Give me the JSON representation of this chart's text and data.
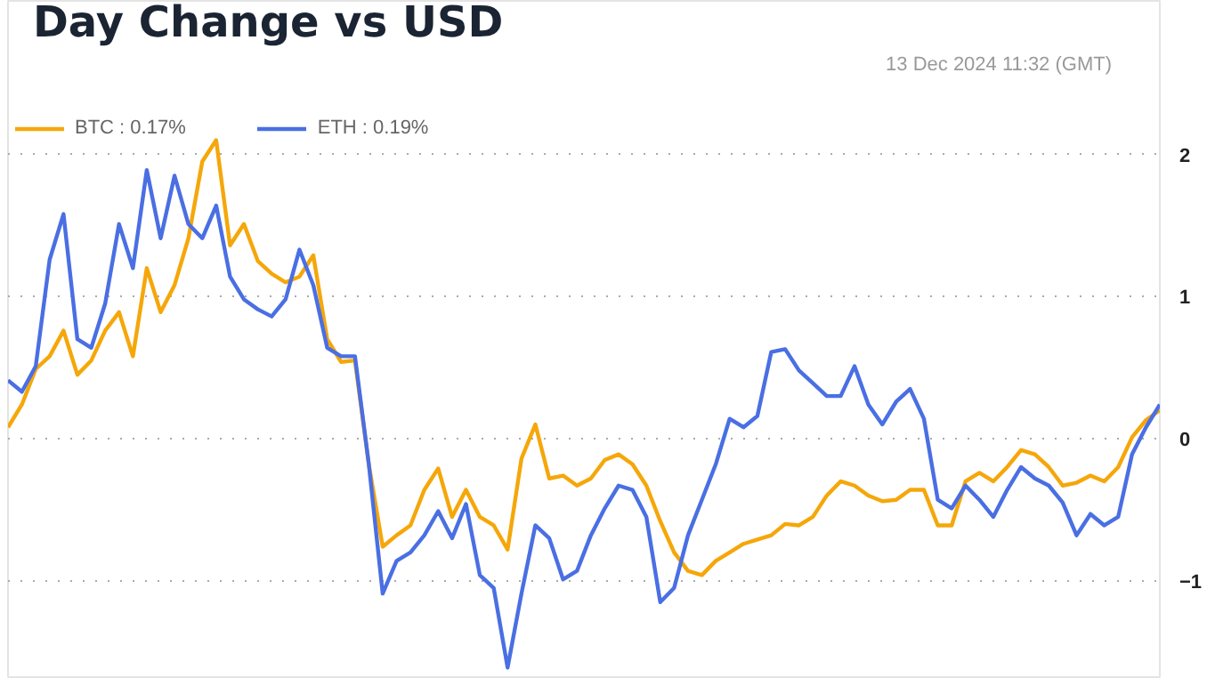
{
  "chart_data": {
    "type": "line",
    "title": "Day Change vs USD",
    "annotations": [
      "13 Dec 2024 11:32 (GMT)"
    ],
    "categories": [
      null,
      null,
      null,
      null,
      null,
      null,
      null,
      null,
      null,
      null,
      null,
      null,
      null,
      null,
      null,
      null,
      null,
      null,
      null,
      null,
      null,
      null,
      null,
      null,
      null,
      null,
      null,
      null,
      null,
      null,
      null,
      null,
      null,
      null,
      null,
      null,
      null,
      null,
      null,
      null,
      null,
      null,
      null,
      null,
      null,
      null,
      null,
      null,
      null,
      null,
      null,
      null,
      null,
      null,
      null,
      null,
      null,
      null,
      null,
      null,
      null,
      null,
      null,
      null,
      null,
      null,
      null,
      null,
      null,
      null,
      null,
      null,
      null,
      null,
      null,
      null,
      null,
      null,
      null,
      null,
      null,
      null,
      null,
      null
    ],
    "series": [
      {
        "name": "BTC : 0.17%",
        "color": "#f5a70a",
        "values": [
          0.08,
          0.24,
          0.49,
          0.58,
          0.76,
          0.45,
          0.55,
          0.76,
          0.89,
          0.58,
          1.2,
          0.89,
          1.08,
          1.41,
          1.95,
          2.1,
          1.36,
          1.51,
          1.25,
          1.16,
          1.1,
          1.14,
          1.29,
          0.7,
          0.54,
          0.55,
          -0.18,
          -0.76,
          -0.68,
          -0.61,
          -0.36,
          -0.21,
          -0.55,
          -0.36,
          -0.55,
          -0.61,
          -0.78,
          -0.14,
          0.1,
          -0.28,
          -0.26,
          -0.33,
          -0.28,
          -0.15,
          -0.11,
          -0.18,
          -0.33,
          -0.58,
          -0.8,
          -0.93,
          -0.96,
          -0.86,
          -0.8,
          -0.74,
          -0.71,
          -0.68,
          -0.6,
          -0.61,
          -0.55,
          -0.4,
          -0.3,
          -0.33,
          -0.4,
          -0.44,
          -0.43,
          -0.36,
          -0.36,
          -0.61,
          -0.61,
          -0.3,
          -0.24,
          -0.3,
          -0.2,
          -0.08,
          -0.11,
          -0.2,
          -0.33,
          -0.31,
          -0.26,
          -0.3,
          -0.2,
          0.01,
          0.13,
          0.2
        ]
      },
      {
        "name": "ETH : 0.19%",
        "color": "#4a6fe3",
        "values": [
          0.41,
          0.33,
          0.51,
          1.26,
          1.58,
          0.7,
          0.64,
          0.95,
          1.51,
          1.2,
          1.89,
          1.41,
          1.85,
          1.51,
          1.41,
          1.64,
          1.14,
          0.98,
          0.91,
          0.86,
          0.98,
          1.33,
          1.08,
          0.64,
          0.58,
          0.58,
          -0.18,
          -1.09,
          -0.86,
          -0.8,
          -0.68,
          -0.51,
          -0.7,
          -0.46,
          -0.96,
          -1.05,
          -1.61,
          -1.09,
          -0.61,
          -0.7,
          -0.99,
          -0.93,
          -0.68,
          -0.49,
          -0.33,
          -0.36,
          -0.55,
          -1.15,
          -1.05,
          -0.68,
          -0.43,
          -0.18,
          0.14,
          0.08,
          0.16,
          0.61,
          0.63,
          0.48,
          0.39,
          0.3,
          0.3,
          0.51,
          0.24,
          0.1,
          0.26,
          0.35,
          0.14,
          -0.43,
          -0.49,
          -0.33,
          -0.43,
          -0.55,
          -0.36,
          -0.2,
          -0.28,
          -0.33,
          -0.45,
          -0.68,
          -0.53,
          -0.61,
          -0.55,
          -0.11,
          0.08,
          0.24
        ]
      }
    ],
    "ylim": [
      -1.69,
      3.08
    ],
    "yticks": [
      {
        "value": 2,
        "label": "2"
      },
      {
        "value": 1,
        "label": "1"
      },
      {
        "value": 0,
        "label": "0"
      },
      {
        "value": -1,
        "label": "−1"
      }
    ],
    "grid": "y",
    "legend": "top left",
    "line_style": "solid"
  }
}
